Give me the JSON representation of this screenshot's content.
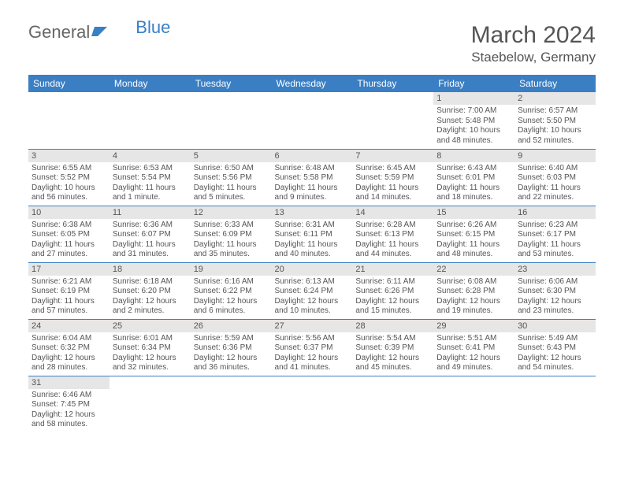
{
  "logo": {
    "part1": "General",
    "part2": "Blue"
  },
  "title": {
    "month": "March 2024",
    "location": "Staebelow, Germany"
  },
  "colors": {
    "header_bg": "#3a7fc4",
    "header_fg": "#ffffff",
    "daynum_bg": "#e6e6e6",
    "text": "#555555",
    "rule": "#3a7fc4",
    "logo_blue": "#3a7fc4"
  },
  "weekdays": [
    "Sunday",
    "Monday",
    "Tuesday",
    "Wednesday",
    "Thursday",
    "Friday",
    "Saturday"
  ],
  "weeks": [
    [
      {
        "n": "",
        "lines": []
      },
      {
        "n": "",
        "lines": []
      },
      {
        "n": "",
        "lines": []
      },
      {
        "n": "",
        "lines": []
      },
      {
        "n": "",
        "lines": []
      },
      {
        "n": "1",
        "lines": [
          "Sunrise: 7:00 AM",
          "Sunset: 5:48 PM",
          "Daylight: 10 hours",
          "and 48 minutes."
        ]
      },
      {
        "n": "2",
        "lines": [
          "Sunrise: 6:57 AM",
          "Sunset: 5:50 PM",
          "Daylight: 10 hours",
          "and 52 minutes."
        ]
      }
    ],
    [
      {
        "n": "3",
        "lines": [
          "Sunrise: 6:55 AM",
          "Sunset: 5:52 PM",
          "Daylight: 10 hours",
          "and 56 minutes."
        ]
      },
      {
        "n": "4",
        "lines": [
          "Sunrise: 6:53 AM",
          "Sunset: 5:54 PM",
          "Daylight: 11 hours",
          "and 1 minute."
        ]
      },
      {
        "n": "5",
        "lines": [
          "Sunrise: 6:50 AM",
          "Sunset: 5:56 PM",
          "Daylight: 11 hours",
          "and 5 minutes."
        ]
      },
      {
        "n": "6",
        "lines": [
          "Sunrise: 6:48 AM",
          "Sunset: 5:58 PM",
          "Daylight: 11 hours",
          "and 9 minutes."
        ]
      },
      {
        "n": "7",
        "lines": [
          "Sunrise: 6:45 AM",
          "Sunset: 5:59 PM",
          "Daylight: 11 hours",
          "and 14 minutes."
        ]
      },
      {
        "n": "8",
        "lines": [
          "Sunrise: 6:43 AM",
          "Sunset: 6:01 PM",
          "Daylight: 11 hours",
          "and 18 minutes."
        ]
      },
      {
        "n": "9",
        "lines": [
          "Sunrise: 6:40 AM",
          "Sunset: 6:03 PM",
          "Daylight: 11 hours",
          "and 22 minutes."
        ]
      }
    ],
    [
      {
        "n": "10",
        "lines": [
          "Sunrise: 6:38 AM",
          "Sunset: 6:05 PM",
          "Daylight: 11 hours",
          "and 27 minutes."
        ]
      },
      {
        "n": "11",
        "lines": [
          "Sunrise: 6:36 AM",
          "Sunset: 6:07 PM",
          "Daylight: 11 hours",
          "and 31 minutes."
        ]
      },
      {
        "n": "12",
        "lines": [
          "Sunrise: 6:33 AM",
          "Sunset: 6:09 PM",
          "Daylight: 11 hours",
          "and 35 minutes."
        ]
      },
      {
        "n": "13",
        "lines": [
          "Sunrise: 6:31 AM",
          "Sunset: 6:11 PM",
          "Daylight: 11 hours",
          "and 40 minutes."
        ]
      },
      {
        "n": "14",
        "lines": [
          "Sunrise: 6:28 AM",
          "Sunset: 6:13 PM",
          "Daylight: 11 hours",
          "and 44 minutes."
        ]
      },
      {
        "n": "15",
        "lines": [
          "Sunrise: 6:26 AM",
          "Sunset: 6:15 PM",
          "Daylight: 11 hours",
          "and 48 minutes."
        ]
      },
      {
        "n": "16",
        "lines": [
          "Sunrise: 6:23 AM",
          "Sunset: 6:17 PM",
          "Daylight: 11 hours",
          "and 53 minutes."
        ]
      }
    ],
    [
      {
        "n": "17",
        "lines": [
          "Sunrise: 6:21 AM",
          "Sunset: 6:19 PM",
          "Daylight: 11 hours",
          "and 57 minutes."
        ]
      },
      {
        "n": "18",
        "lines": [
          "Sunrise: 6:18 AM",
          "Sunset: 6:20 PM",
          "Daylight: 12 hours",
          "and 2 minutes."
        ]
      },
      {
        "n": "19",
        "lines": [
          "Sunrise: 6:16 AM",
          "Sunset: 6:22 PM",
          "Daylight: 12 hours",
          "and 6 minutes."
        ]
      },
      {
        "n": "20",
        "lines": [
          "Sunrise: 6:13 AM",
          "Sunset: 6:24 PM",
          "Daylight: 12 hours",
          "and 10 minutes."
        ]
      },
      {
        "n": "21",
        "lines": [
          "Sunrise: 6:11 AM",
          "Sunset: 6:26 PM",
          "Daylight: 12 hours",
          "and 15 minutes."
        ]
      },
      {
        "n": "22",
        "lines": [
          "Sunrise: 6:08 AM",
          "Sunset: 6:28 PM",
          "Daylight: 12 hours",
          "and 19 minutes."
        ]
      },
      {
        "n": "23",
        "lines": [
          "Sunrise: 6:06 AM",
          "Sunset: 6:30 PM",
          "Daylight: 12 hours",
          "and 23 minutes."
        ]
      }
    ],
    [
      {
        "n": "24",
        "lines": [
          "Sunrise: 6:04 AM",
          "Sunset: 6:32 PM",
          "Daylight: 12 hours",
          "and 28 minutes."
        ]
      },
      {
        "n": "25",
        "lines": [
          "Sunrise: 6:01 AM",
          "Sunset: 6:34 PM",
          "Daylight: 12 hours",
          "and 32 minutes."
        ]
      },
      {
        "n": "26",
        "lines": [
          "Sunrise: 5:59 AM",
          "Sunset: 6:36 PM",
          "Daylight: 12 hours",
          "and 36 minutes."
        ]
      },
      {
        "n": "27",
        "lines": [
          "Sunrise: 5:56 AM",
          "Sunset: 6:37 PM",
          "Daylight: 12 hours",
          "and 41 minutes."
        ]
      },
      {
        "n": "28",
        "lines": [
          "Sunrise: 5:54 AM",
          "Sunset: 6:39 PM",
          "Daylight: 12 hours",
          "and 45 minutes."
        ]
      },
      {
        "n": "29",
        "lines": [
          "Sunrise: 5:51 AM",
          "Sunset: 6:41 PM",
          "Daylight: 12 hours",
          "and 49 minutes."
        ]
      },
      {
        "n": "30",
        "lines": [
          "Sunrise: 5:49 AM",
          "Sunset: 6:43 PM",
          "Daylight: 12 hours",
          "and 54 minutes."
        ]
      }
    ],
    [
      {
        "n": "31",
        "lines": [
          "Sunrise: 6:46 AM",
          "Sunset: 7:45 PM",
          "Daylight: 12 hours",
          "and 58 minutes."
        ]
      },
      {
        "n": "",
        "lines": []
      },
      {
        "n": "",
        "lines": []
      },
      {
        "n": "",
        "lines": []
      },
      {
        "n": "",
        "lines": []
      },
      {
        "n": "",
        "lines": []
      },
      {
        "n": "",
        "lines": []
      }
    ]
  ]
}
